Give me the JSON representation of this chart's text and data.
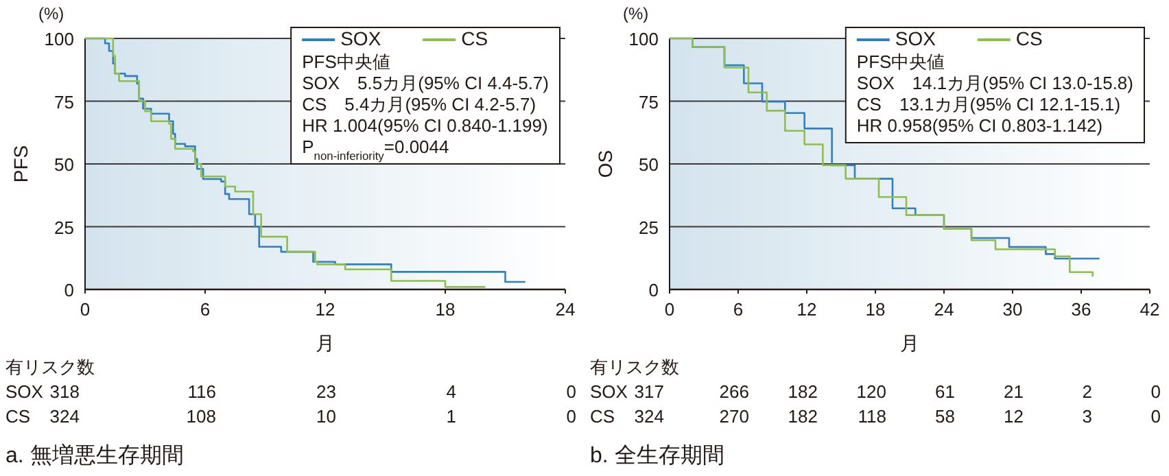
{
  "chart_data": [
    {
      "type": "step",
      "xlabel": "月",
      "ylabel": "PFS",
      "xlim": [
        0,
        24
      ],
      "xticks": [
        0,
        6,
        12,
        18,
        24
      ],
      "ylim": [
        0,
        100
      ],
      "yticks": [
        0,
        25,
        50,
        75,
        100
      ],
      "grid": "y",
      "legend": "top right",
      "series": [
        {
          "name": "SOX",
          "color": "#2e7fc4",
          "x": [
            0,
            1.0,
            1.2,
            1.4,
            1.5,
            2.0,
            2.6,
            2.7,
            2.9,
            3.3,
            4.2,
            4.4,
            4.5,
            5.0,
            5.5,
            5.6,
            5.9,
            6.8,
            7.0,
            7.2,
            8.2,
            8.5,
            8.7,
            9.8,
            11.4,
            12.5,
            15.3,
            21.0,
            22.0
          ],
          "values": [
            100,
            98,
            95,
            90,
            86,
            85,
            82,
            76,
            72,
            70,
            67,
            62,
            58,
            57,
            52,
            48,
            44,
            43,
            38,
            36,
            30,
            25,
            17,
            15,
            11,
            10,
            7,
            3,
            3
          ]
        },
        {
          "name": "CS",
          "color": "#8dbf4a",
          "x": [
            0,
            1.4,
            1.5,
            1.7,
            2.5,
            2.7,
            3.0,
            3.3,
            4.2,
            4.3,
            4.5,
            5.4,
            5.5,
            5.8,
            7.0,
            7.5,
            8.4,
            8.8,
            10.1,
            11.5,
            11.6,
            13.0,
            15.3,
            18.0,
            20.0
          ],
          "values": [
            100,
            93,
            86,
            83,
            83,
            75,
            71,
            67,
            66,
            60,
            56,
            55,
            50,
            45,
            41,
            39,
            30,
            21,
            15,
            11,
            10,
            8,
            3.4,
            1,
            1
          ]
        }
      ],
      "annotations": [
        "(%)",
        "PFS中央値",
        "SOX　5.5カ月(95% CI 4.4-5.7)",
        "CS　5.4カ月(95% CI 4.2-5.7)",
        "HR 1.004(95% CI 0.840-1.199)",
        "P$_{non-inferiority}$=0.0044",
        "有リスク数",
        "SOX",
        "318",
        "116",
        "23",
        "4",
        "0",
        "CS",
        "324",
        "108",
        "10",
        "1",
        "0",
        "a. 無増悪生存期間"
      ]
    },
    {
      "type": "step",
      "xlabel": "月",
      "ylabel": "OS",
      "xlim": [
        0,
        42
      ],
      "xticks": [
        0,
        6,
        12,
        18,
        24,
        30,
        36,
        42
      ],
      "ylim": [
        0,
        100
      ],
      "yticks": [
        0,
        25,
        50,
        75,
        100
      ],
      "grid": "y",
      "legend": "top right",
      "series": [
        {
          "name": "SOX",
          "color": "#2e7fc4",
          "x": [
            0,
            2.0,
            4.8,
            6.5,
            8.1,
            10.1,
            11.8,
            14.2,
            16.2,
            19.5,
            21.5,
            24.0,
            26.4,
            29.7,
            32.9,
            33.7,
            37.6
          ],
          "values": [
            100,
            96.6,
            89.3,
            82.1,
            74.8,
            70.3,
            64.1,
            49.5,
            44.1,
            32.3,
            29.6,
            24.1,
            20.5,
            16.9,
            14.1,
            12.3,
            12.3
          ]
        },
        {
          "name": "CS",
          "color": "#8dbf4a",
          "x": [
            0,
            2.0,
            4.8,
            6.9,
            8.5,
            10.1,
            11.8,
            13.4,
            15.4,
            18.3,
            20.7,
            24.0,
            26.4,
            28.5,
            33.7,
            35.0,
            37.0
          ],
          "values": [
            100,
            96.6,
            88.4,
            78.5,
            71.2,
            63.2,
            57.8,
            49.5,
            44.1,
            36.8,
            29.6,
            24.1,
            19.6,
            16.0,
            13.2,
            6.9,
            5.1
          ]
        }
      ],
      "annotations": [
        "(%)",
        "PFS中央値",
        "SOX　14.1カ月(95% CI 13.0-15.8)",
        "CS　13.1カ月(95% CI 12.1-15.1)",
        "HR 0.958(95% CI 0.803-1.142)",
        "有リスク数",
        "SOX",
        "317",
        "266",
        "182",
        "120",
        "61",
        "21",
        "2",
        "0",
        "CS",
        "324",
        "270",
        "182",
        "118",
        "58",
        "12",
        "3",
        "0",
        "b. 全生存期間"
      ]
    }
  ]
}
